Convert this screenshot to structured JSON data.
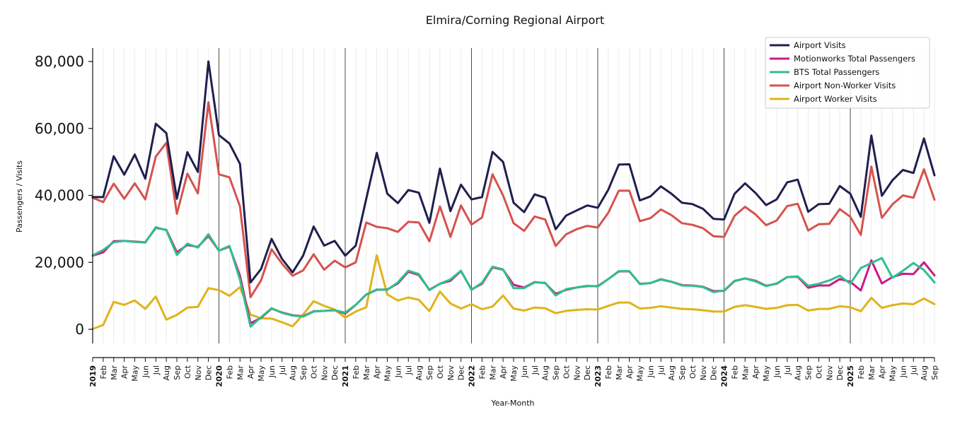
{
  "chart_data": {
    "type": "line",
    "title": "Elmira/Corning Regional Airport",
    "xlabel": "Year-Month",
    "ylabel": "Passengers / Visits",
    "ylim": [
      -4000,
      84000
    ],
    "y_ticks": [
      0,
      20000,
      40000,
      60000,
      80000
    ],
    "y_tick_labels": [
      "0",
      "20,000",
      "40,000",
      "60,000",
      "80,000"
    ],
    "x_tick_labels": [
      "2019",
      "Feb",
      "Mar",
      "Apr",
      "May",
      "Jun",
      "Jul",
      "Aug",
      "Sep",
      "Oct",
      "Nov",
      "Dec",
      "2020",
      "Feb",
      "Mar",
      "Apr",
      "May",
      "Jun",
      "Jul",
      "Aug",
      "Sep",
      "Oct",
      "Nov",
      "Dec",
      "2021",
      "Feb",
      "Mar",
      "Apr",
      "May",
      "Jun",
      "Jul",
      "Aug",
      "Sep",
      "Oct",
      "Nov",
      "Dec",
      "2022",
      "Feb",
      "Mar",
      "Apr",
      "May",
      "Jun",
      "Jul",
      "Aug",
      "Sep",
      "Oct",
      "Nov",
      "Dec",
      "2023",
      "Feb",
      "Mar",
      "Apr",
      "May",
      "Jun",
      "Jul",
      "Aug",
      "Sep",
      "Oct",
      "Nov",
      "Dec",
      "2024",
      "Feb",
      "Mar",
      "Apr",
      "May",
      "Jun",
      "Jul",
      "Aug",
      "Sep",
      "Oct",
      "Nov",
      "Dec",
      "2025",
      "Feb",
      "Mar",
      "Apr",
      "May",
      "Jun",
      "Jul",
      "Aug",
      "Sep"
    ],
    "grid": true,
    "legend_position": "top-right",
    "series": [
      {
        "name": "Airport Visits",
        "color": "#1f1f4f",
        "values": [
          39500,
          39500,
          51700,
          46200,
          52200,
          45000,
          61400,
          58600,
          39000,
          52900,
          47000,
          80000,
          58000,
          55500,
          49400,
          14000,
          18000,
          27000,
          21000,
          17000,
          22000,
          30700,
          25000,
          26400,
          22000,
          25000,
          39000,
          52700,
          40500,
          37700,
          41600,
          40800,
          31800,
          48000,
          35300,
          43200,
          38800,
          39500,
          53000,
          50000,
          37800,
          35000,
          40300,
          39300,
          29900,
          34000,
          35500,
          37000,
          36300,
          41700,
          49200,
          49300,
          38500,
          39700,
          42700,
          40500,
          37800,
          37400,
          36000,
          33000,
          32800,
          40500,
          43600,
          40700,
          37100,
          38800,
          43900,
          44700,
          35100,
          37400,
          37500,
          42800,
          40500,
          33600,
          57900,
          39900,
          44500,
          47600,
          46700,
          57000,
          46000
        ]
      },
      {
        "name": "Motionworks Total Passengers",
        "color": "#cc1a86",
        "values": [
          22000,
          23000,
          26300,
          26400,
          26200,
          26000,
          30300,
          29700,
          23000,
          25200,
          24600,
          27900,
          23500,
          24700,
          16000,
          1800,
          3400,
          6200,
          5000,
          4200,
          3900,
          5400,
          5500,
          5700,
          4700,
          7300,
          10400,
          11800,
          11900,
          13700,
          17200,
          16200,
          11800,
          13600,
          14500,
          17400,
          11900,
          13600,
          18500,
          17800,
          13300,
          12500,
          14100,
          13800,
          10600,
          11800,
          12500,
          12900,
          12900,
          15000,
          17300,
          17300,
          13600,
          13800,
          14900,
          14200,
          13200,
          13100,
          12700,
          11400,
          11500,
          14400,
          15200,
          14500,
          13000,
          13600,
          15600,
          15700,
          12400,
          13100,
          13100,
          15000,
          14200,
          11600,
          20600,
          13700,
          15600,
          16600,
          16500,
          20000,
          16100
        ]
      },
      {
        "name": "BTS Total Passengers",
        "color": "#2dc08c",
        "values": [
          22100,
          23700,
          26000,
          26400,
          26100,
          25900,
          30500,
          29600,
          22200,
          25600,
          24400,
          28400,
          23500,
          24900,
          14800,
          800,
          3600,
          6300,
          4900,
          4100,
          3800,
          5300,
          5500,
          5700,
          5000,
          7300,
          10400,
          11900,
          11800,
          14000,
          17500,
          16500,
          11700,
          13600,
          14900,
          17500,
          11800,
          13900,
          18700,
          17900,
          12300,
          12300,
          14000,
          13900,
          10100,
          12000,
          12500,
          13000,
          12800,
          15000,
          17400,
          17400,
          13500,
          13800,
          15000,
          14200,
          13100,
          13000,
          12600,
          11100,
          11600,
          14500,
          15200,
          14300,
          12900,
          13700,
          15600,
          15800,
          13000,
          13600,
          14600,
          16000,
          13600,
          18300,
          19800,
          21300,
          15400,
          17500,
          19800,
          17700,
          14000
        ]
      },
      {
        "name": "Airport Non-Worker Visits",
        "color": "#d6524d",
        "values": [
          39300,
          38000,
          43500,
          39000,
          43600,
          38800,
          51600,
          55700,
          34500,
          46500,
          40600,
          67800,
          46300,
          45400,
          36700,
          9600,
          14600,
          23900,
          19600,
          16000,
          17600,
          22400,
          17800,
          20500,
          18500,
          20000,
          31900,
          30600,
          30200,
          29100,
          32100,
          31900,
          26300,
          36700,
          27600,
          37000,
          31300,
          33400,
          46300,
          40000,
          31700,
          29400,
          33700,
          32800,
          24900,
          28400,
          29900,
          30900,
          30400,
          34800,
          41400,
          41400,
          32300,
          33200,
          35800,
          34100,
          31700,
          31200,
          30200,
          27800,
          27600,
          33900,
          36600,
          34300,
          31100,
          32500,
          36800,
          37500,
          29500,
          31400,
          31500,
          35900,
          33600,
          28200,
          48600,
          33300,
          37300,
          40000,
          39300,
          47800,
          38700
        ]
      },
      {
        "name": "Airport Worker Visits",
        "color": "#e0b31a",
        "values": [
          100,
          1300,
          8200,
          7300,
          8600,
          6100,
          9800,
          2900,
          4300,
          6500,
          6700,
          12300,
          11700,
          10000,
          12600,
          4400,
          3300,
          3200,
          2100,
          900,
          4400,
          8400,
          7000,
          5900,
          3500,
          5300,
          6600,
          22100,
          10400,
          8600,
          9500,
          8800,
          5400,
          11300,
          7700,
          6200,
          7500,
          6000,
          6800,
          10100,
          6200,
          5600,
          6500,
          6300,
          4800,
          5500,
          5800,
          6000,
          5900,
          7000,
          8000,
          8000,
          6200,
          6400,
          6900,
          6500,
          6100,
          6000,
          5700,
          5300,
          5300,
          6700,
          7200,
          6700,
          6100,
          6400,
          7200,
          7300,
          5600,
          6100,
          6100,
          6900,
          6600,
          5400,
          9400,
          6400,
          7200,
          7700,
          7500,
          9200,
          7500
        ]
      }
    ]
  }
}
